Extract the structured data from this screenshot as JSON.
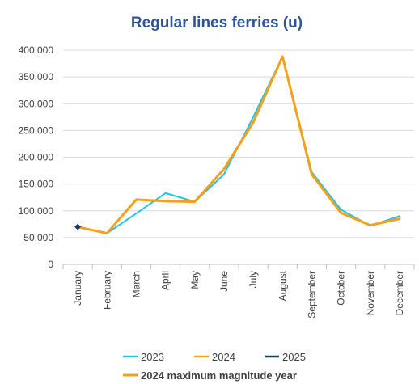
{
  "chart_data": {
    "type": "line",
    "title": "Regular lines ferries (u)",
    "categories": [
      "January",
      "February",
      "March",
      "April",
      "May",
      "June",
      "July",
      "August",
      "September",
      "October",
      "November",
      "December"
    ],
    "y_ticks": [
      "0",
      "50.000",
      "100.000",
      "150.000",
      "200.000",
      "250.000",
      "300.000",
      "350.000",
      "400.000"
    ],
    "ylim": [
      0,
      400000
    ],
    "grid": "horizontal",
    "legend_position": "bottom",
    "series": [
      {
        "name": "2023",
        "color": "#21c3e6",
        "values": [
          70000,
          58000,
          95000,
          133000,
          117000,
          168000,
          275000,
          388000,
          172000,
          102000,
          72000,
          90000
        ]
      },
      {
        "name": "2024",
        "color": "#f5a01a",
        "values": [
          70000,
          58000,
          121000,
          118000,
          117000,
          178000,
          265000,
          388000,
          168000,
          96000,
          73000,
          85000
        ]
      },
      {
        "name": "2025",
        "color": "#1f3864",
        "values": [
          70000,
          null,
          null,
          null,
          null,
          null,
          null,
          null,
          null,
          null,
          null,
          null
        ]
      }
    ],
    "note": {
      "text": "2024 maximum magnitude year",
      "color": "#f5a01a"
    },
    "title_color": "#2e5496"
  }
}
